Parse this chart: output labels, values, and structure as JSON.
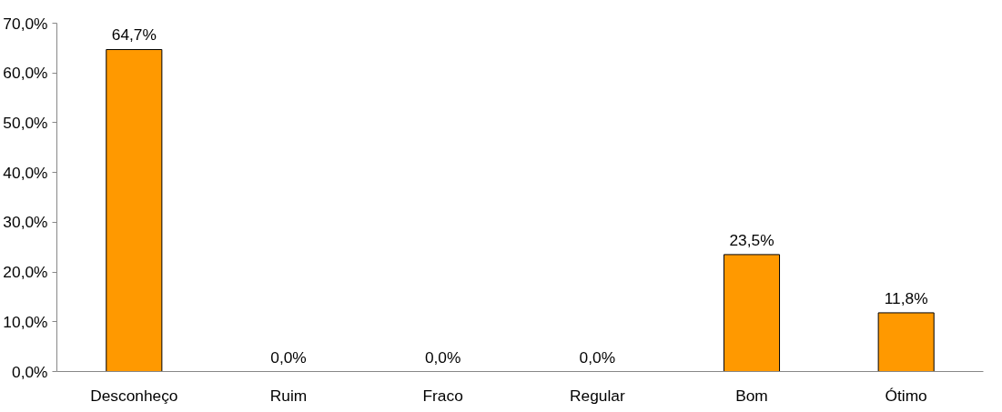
{
  "chart_data": {
    "type": "bar",
    "categories": [
      "Desconheço",
      "Ruim",
      "Fraco",
      "Regular",
      "Bom",
      "Ótimo"
    ],
    "values": [
      64.7,
      0,
      0,
      0,
      23.5,
      11.8
    ],
    "value_labels": [
      "64,7%",
      "0,0%",
      "0,0%",
      "0,0%",
      "23,5%",
      "11,8%"
    ],
    "color": "#ff9900",
    "ylim": [
      0,
      70
    ],
    "yticks": [
      {
        "value": 0,
        "label": "0,0%"
      },
      {
        "value": 10,
        "label": "10,0%"
      },
      {
        "value": 20,
        "label": "20,0%"
      },
      {
        "value": 30,
        "label": "30,0%"
      },
      {
        "value": 40,
        "label": "40,0%"
      },
      {
        "value": 50,
        "label": "50,0%"
      },
      {
        "value": 60,
        "label": "60,0%"
      },
      {
        "value": 70,
        "label": "70,0%"
      }
    ]
  }
}
